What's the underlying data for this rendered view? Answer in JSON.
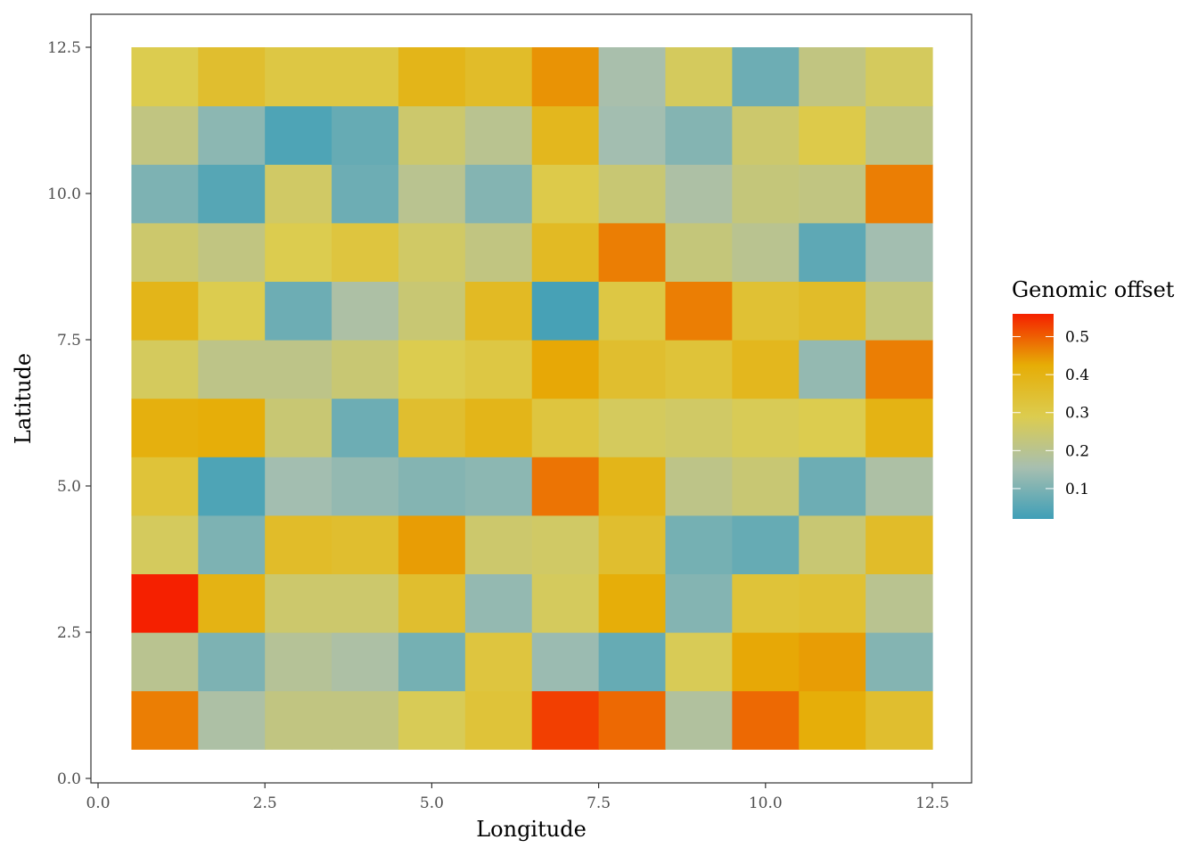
{
  "chart_data": {
    "type": "heatmap",
    "title": "",
    "xlabel": "Longitude",
    "ylabel": "Latitude",
    "xlim": [
      0,
      12.5
    ],
    "ylim": [
      0,
      12.5
    ],
    "x_ticks": [
      "0.0",
      "2.5",
      "5.0",
      "7.5",
      "10.0",
      "12.5"
    ],
    "y_ticks": [
      "0.0",
      "2.5",
      "5.0",
      "7.5",
      "10.0",
      "12.5"
    ],
    "x_tick_values": [
      0,
      2.5,
      5,
      7.5,
      10,
      12.5
    ],
    "y_tick_values": [
      0,
      2.5,
      5,
      7.5,
      10,
      12.5
    ],
    "grid": false,
    "legend": {
      "title": "Genomic offset",
      "placement": "right",
      "ticks": [
        "0.1",
        "0.2",
        "0.3",
        "0.4",
        "0.5"
      ],
      "tick_values": [
        0.1,
        0.2,
        0.3,
        0.4,
        0.5
      ],
      "range": [
        0.02,
        0.56
      ],
      "colors": [
        "#3f9fb7",
        "#a7bfb0",
        "#dccc4f",
        "#e6ad06",
        "#f52000"
      ]
    },
    "x": [
      1,
      2,
      3,
      4,
      5,
      6,
      7,
      8,
      9,
      10,
      11,
      12
    ],
    "y": [
      1,
      2,
      3,
      4,
      5,
      6,
      7,
      8,
      9,
      10,
      11,
      12
    ],
    "values": [
      [
        0.47,
        0.17,
        0.22,
        0.22,
        0.28,
        0.33,
        0.53,
        0.49,
        0.18,
        0.49,
        0.42,
        0.35
      ],
      [
        0.2,
        0.1,
        0.19,
        0.17,
        0.09,
        0.32,
        0.14,
        0.07,
        0.28,
        0.43,
        0.44,
        0.11
      ],
      [
        0.56,
        0.4,
        0.25,
        0.25,
        0.35,
        0.13,
        0.27,
        0.42,
        0.11,
        0.33,
        0.34,
        0.2
      ],
      [
        0.27,
        0.1,
        0.36,
        0.35,
        0.44,
        0.25,
        0.26,
        0.35,
        0.09,
        0.07,
        0.24,
        0.36
      ],
      [
        0.33,
        0.04,
        0.15,
        0.13,
        0.11,
        0.12,
        0.48,
        0.39,
        0.21,
        0.24,
        0.08,
        0.17
      ],
      [
        0.41,
        0.42,
        0.24,
        0.08,
        0.35,
        0.39,
        0.32,
        0.27,
        0.26,
        0.28,
        0.29,
        0.4
      ],
      [
        0.27,
        0.21,
        0.21,
        0.24,
        0.29,
        0.31,
        0.43,
        0.35,
        0.33,
        0.38,
        0.13,
        0.47
      ],
      [
        0.39,
        0.29,
        0.08,
        0.17,
        0.24,
        0.37,
        0.03,
        0.31,
        0.47,
        0.34,
        0.36,
        0.23
      ],
      [
        0.25,
        0.22,
        0.29,
        0.32,
        0.26,
        0.22,
        0.37,
        0.47,
        0.23,
        0.2,
        0.06,
        0.15
      ],
      [
        0.1,
        0.05,
        0.26,
        0.08,
        0.2,
        0.11,
        0.3,
        0.24,
        0.17,
        0.23,
        0.22,
        0.47
      ],
      [
        0.22,
        0.12,
        0.04,
        0.07,
        0.25,
        0.2,
        0.38,
        0.15,
        0.11,
        0.25,
        0.3,
        0.21
      ],
      [
        0.29,
        0.35,
        0.31,
        0.31,
        0.39,
        0.36,
        0.45,
        0.16,
        0.27,
        0.08,
        0.22,
        0.27
      ]
    ]
  }
}
